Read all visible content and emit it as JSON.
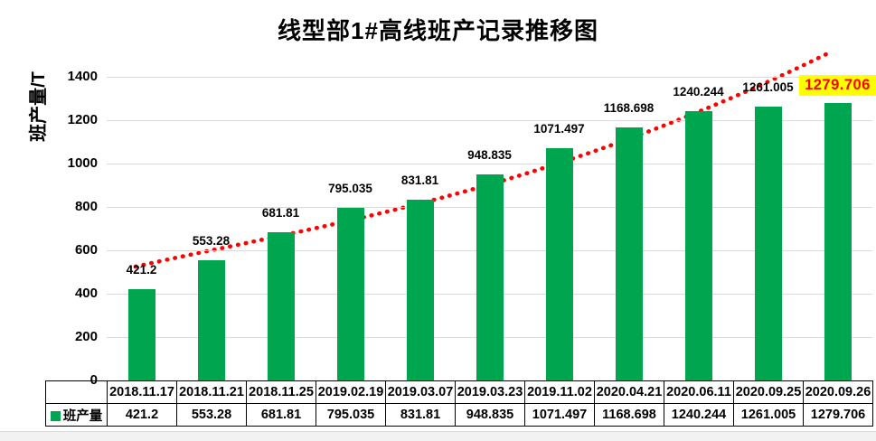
{
  "chart_data": {
    "type": "bar",
    "title": "线型部1#高线班产记录推移图",
    "ylabel": "班产量/T",
    "series_name": "班产量",
    "categories": [
      "2018.11.17",
      "2018.11.21",
      "2018.11.25",
      "2019.02.19",
      "2019.03.07",
      "2019.03.23",
      "2019.11.02",
      "2020.04.21",
      "2020.06.11",
      "2020.09.25",
      "2020.09.26"
    ],
    "values": [
      421.2,
      553.28,
      681.81,
      795.035,
      831.81,
      948.835,
      1071.497,
      1168.698,
      1240.244,
      1261.005,
      1279.706
    ],
    "value_labels": [
      "421.2",
      "553.28",
      "681.81",
      "795.035",
      "831.81",
      "948.835",
      "1071.497",
      "1168.698",
      "1240.244",
      "1261.005",
      "1279.706"
    ],
    "highlighted_index": 10,
    "ylim": [
      0,
      1500
    ],
    "ytick_step": 200,
    "ytick_labels": [
      "0",
      "200",
      "400",
      "600",
      "800",
      "1000",
      "1200",
      "1400"
    ],
    "grid": true,
    "legend_position": "table-left",
    "trendline": {
      "type": "dotted-exponential-trend",
      "color": "#FF0000"
    },
    "colors": {
      "bar": "#00A550",
      "trend": "#FF0000",
      "highlight_bg": "#FFFF00",
      "highlight_text": "#FF0000",
      "gridline": "#D9D9D9",
      "table_border": "#000000",
      "label_text": "#000000"
    }
  }
}
